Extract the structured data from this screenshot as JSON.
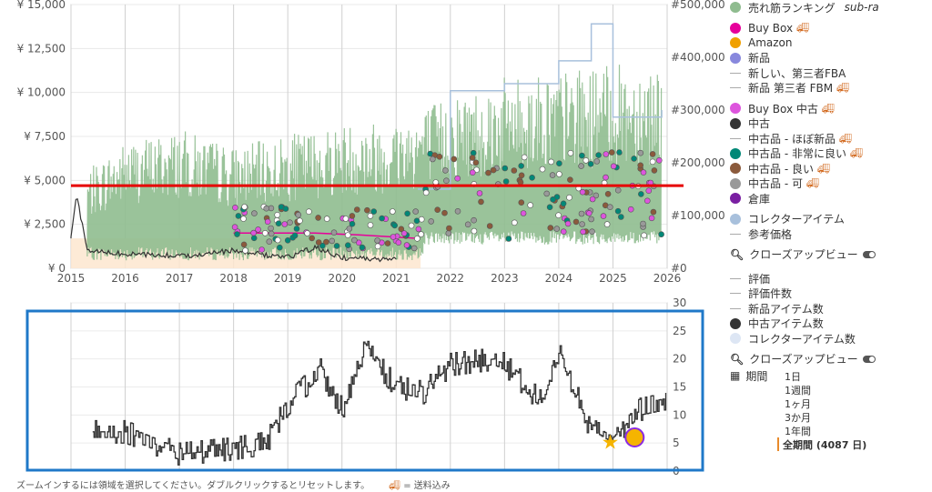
{
  "chart_data": [
    {
      "type": "line",
      "title": "",
      "x_ticks": [
        "2015",
        "2016",
        "2017",
        "2018",
        "2019",
        "2020",
        "2021",
        "2022",
        "2023",
        "2024",
        "2025",
        "2026"
      ],
      "y_left_ticks": [
        "¥ 0",
        "¥ 2,500",
        "¥ 5,000",
        "¥ 7,500",
        "¥ 10,000",
        "¥ 12,500",
        "¥ 15,000"
      ],
      "y_right_ticks": [
        "#0",
        "#100,000",
        "#200,000",
        "#300,000",
        "#400,000",
        "#500,000"
      ],
      "ylim_left": [
        0,
        15000
      ],
      "ylim_right": [
        0,
        500000
      ],
      "reference_line": {
        "value": 4700,
        "color": "#e60000"
      },
      "series": [
        {
          "name": "売れ筋ランキング",
          "color": "#8fbc8f",
          "axis": "right",
          "x": [
            2015.3,
            2016,
            2017,
            2018,
            2019,
            2020,
            2021,
            2022,
            2023,
            2024,
            2025,
            2025.9
          ],
          "values": [
            170000,
            220000,
            240000,
            210000,
            230000,
            250000,
            260000,
            300000,
            330000,
            340000,
            350000,
            360000
          ]
        },
        {
          "name": "中古",
          "color": "#333333",
          "axis": "left",
          "x": [
            2015,
            2015.1,
            2015.3,
            2016,
            2017,
            2018,
            2019,
            2019.5,
            2020,
            2021
          ],
          "values": [
            1700,
            4200,
            1000,
            800,
            700,
            1000,
            600,
            1200,
            600,
            500
          ]
        },
        {
          "name": "Buy Box",
          "color": "#e6009a",
          "axis": "left",
          "x": [
            2018,
            2019.5,
            2020.3,
            2021.4
          ],
          "values": [
            2000,
            2000,
            1900,
            1700
          ]
        },
        {
          "name": "コレクターアイテム",
          "color": "#a8c0dc",
          "axis": "left",
          "x": [
            2021.4,
            2022,
            2023,
            2024,
            2024.6,
            2025,
            2025.9
          ],
          "values": [
            4500,
            10100,
            10500,
            11800,
            13900,
            8600,
            9000
          ]
        }
      ]
    },
    {
      "type": "line",
      "y_ticks": [
        "0",
        "5",
        "10",
        "15",
        "20",
        "25",
        "30"
      ],
      "ylim": [
        0,
        30
      ],
      "series": [
        {
          "name": "中古アイテム数",
          "color": "#333333",
          "x": [
            2015.4,
            2016,
            2017,
            2018,
            2018.6,
            2019,
            2019.6,
            2020,
            2020.4,
            2021,
            2021.5,
            2022,
            2022.8,
            2023,
            2023.7,
            2024,
            2024.5,
            2025,
            2025.5,
            2026
          ],
          "values": [
            7,
            7,
            3,
            4,
            5,
            12,
            18,
            11,
            22,
            15,
            14,
            19,
            20,
            19,
            12,
            22,
            9,
            6,
            11,
            12
          ]
        }
      ]
    }
  ],
  "legend_top": [
    {
      "label": "売れ筋ランキング",
      "color": "#8fbc8f",
      "shape": "dot",
      "extra": "sub-ra"
    },
    {
      "label": "Buy Box",
      "color": "#e6009a",
      "shape": "dot",
      "truck": true
    },
    {
      "label": "Amazon",
      "color": "#f0a000",
      "shape": "dot"
    },
    {
      "label": "新品",
      "color": "#8888dd",
      "shape": "dot"
    },
    {
      "label": "新しい、第三者FBA",
      "color": "#aaaaaa",
      "shape": "dash"
    },
    {
      "label": "新品 第三者 FBM",
      "color": "#aaaaaa",
      "shape": "dash",
      "truck": true
    },
    {
      "label": "Buy Box 中古",
      "color": "#dd55dd",
      "shape": "dot",
      "truck": true
    },
    {
      "label": "中古",
      "color": "#333333",
      "shape": "dot"
    },
    {
      "label": "中古品 - ほぼ新品",
      "color": "#aaaaaa",
      "shape": "dash",
      "truck": true
    },
    {
      "label": "中古品 - 非常に良い",
      "color": "#008877",
      "shape": "dot",
      "truck": true
    },
    {
      "label": "中古品 - 良い",
      "color": "#8b5a3c",
      "shape": "dot",
      "truck": true
    },
    {
      "label": "中古品 - 可",
      "color": "#999999",
      "shape": "dot",
      "truck": true
    },
    {
      "label": "倉庫",
      "color": "#7a1fa2",
      "shape": "dot"
    },
    {
      "label": "コレクターアイテム",
      "color": "#a8c0dc",
      "shape": "dot"
    },
    {
      "label": "参考価格",
      "color": "#aaaaaa",
      "shape": "dash"
    }
  ],
  "closeup_label": "クローズアップビュー",
  "legend_bottom": [
    {
      "label": "評価",
      "color": "#aaaaaa",
      "shape": "dash"
    },
    {
      "label": "評価件数",
      "color": "#aaaaaa",
      "shape": "dash"
    },
    {
      "label": "新品アイテム数",
      "color": "#aaaaaa",
      "shape": "dash"
    },
    {
      "label": "中古アイテム数",
      "color": "#333333",
      "shape": "dot"
    },
    {
      "label": "コレクターアイテム数",
      "color": "#dde6f4",
      "shape": "dot"
    }
  ],
  "period": {
    "label": "期間",
    "options": [
      "1日",
      "1週間",
      "1ヶ月",
      "3か月",
      "1年間"
    ],
    "active": "全期間 (4087 日)"
  },
  "footer_text": "ズームインするには領域を選択してください。ダブルクリックするとリセットします。",
  "footer_note": "= 送料込み"
}
